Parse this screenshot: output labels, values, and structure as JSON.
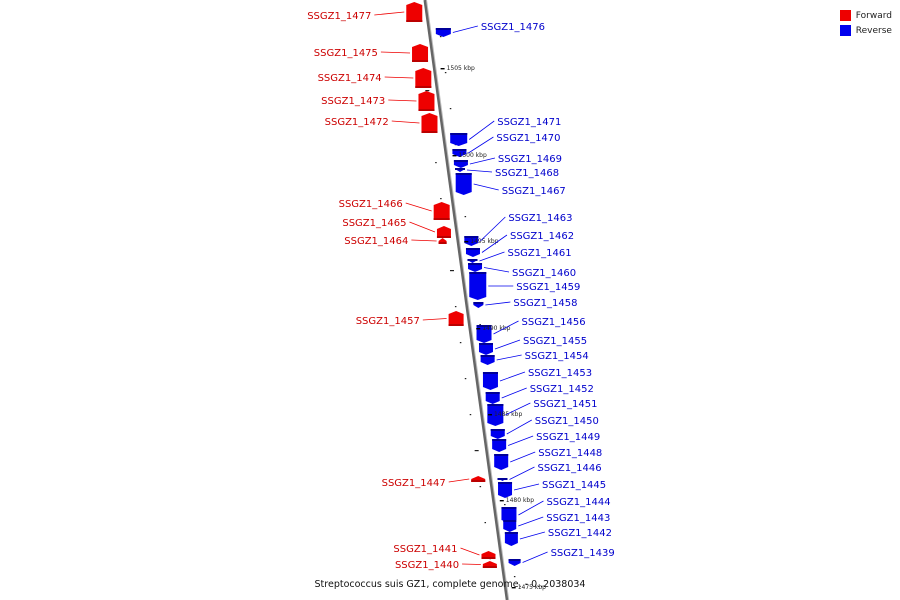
{
  "caption": "Streptococcus suis GZ1, complete genome. - 0..2038034",
  "legend": [
    {
      "label": "Forward",
      "color": "#ee0000"
    },
    {
      "label": "Reverse",
      "color": "#0000ee"
    }
  ],
  "colors": {
    "forward": "#ee0000",
    "reverse": "#0000ee",
    "backbone": "#888888"
  },
  "scale_ticks": [
    "1505 kbp",
    "1500 kbp",
    "1495 kbp",
    "1490 kbp",
    "1485 kbp",
    "1480 kbp",
    "1475 kbp"
  ],
  "forward_genes": [
    "SSGZ1_1477",
    "SSGZ1_1475",
    "SSGZ1_1474",
    "SSGZ1_1473",
    "SSGZ1_1472",
    "SSGZ1_1466",
    "SSGZ1_1465",
    "SSGZ1_1464",
    "SSGZ1_1457",
    "SSGZ1_1447",
    "SSGZ1_1441",
    "SSGZ1_1440"
  ],
  "reverse_genes": [
    "SSGZ1_1476",
    "SSGZ1_1471",
    "SSGZ1_1470",
    "SSGZ1_1469",
    "SSGZ1_1468",
    "SSGZ1_1467",
    "SSGZ1_1463",
    "SSGZ1_1462",
    "SSGZ1_1461",
    "SSGZ1_1460",
    "SSGZ1_1459",
    "SSGZ1_1458",
    "SSGZ1_1456",
    "SSGZ1_1455",
    "SSGZ1_1454",
    "SSGZ1_1453",
    "SSGZ1_1452",
    "SSGZ1_1451",
    "SSGZ1_1450",
    "SSGZ1_1449",
    "SSGZ1_1448",
    "SSGZ1_1446",
    "SSGZ1_1445",
    "SSGZ1_1444",
    "SSGZ1_1443",
    "SSGZ1_1442",
    "SSGZ1_1439"
  ]
}
